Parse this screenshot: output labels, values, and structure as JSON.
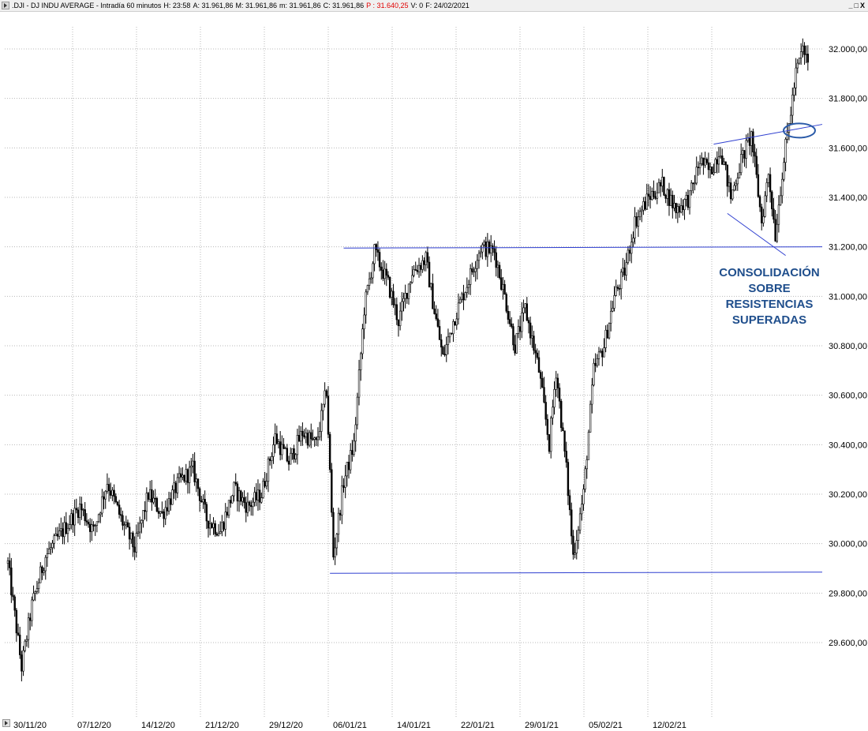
{
  "window": {
    "title_parts": [
      {
        "text": ".DJI - DJ INDU AVERAGE - Intradía 60 minutos",
        "color": "#000000"
      },
      {
        "text": "H: 23:58",
        "color": "#000000"
      },
      {
        "text": "A: 31.961,86",
        "color": "#000000"
      },
      {
        "text": "M: 31.961,86",
        "color": "#000000"
      },
      {
        "text": "m: 31.961,86",
        "color": "#000000"
      },
      {
        "text": "C: 31.961,86",
        "color": "#000000"
      },
      {
        "text": "P : 31.640,25",
        "color": "#e00000"
      },
      {
        "text": "V: 0",
        "color": "#000000"
      },
      {
        "text": "F: 24/02/2021",
        "color": "#000000"
      }
    ],
    "controls": {
      "minimize": "_",
      "restore": "□",
      "close": "X"
    }
  },
  "chart_data": {
    "type": "candlestick",
    "title": "",
    "xlabel": "",
    "ylabel": "",
    "ylim": [
      29400,
      32150
    ],
    "y_ticks": [
      29600,
      29800,
      30000,
      30200,
      30400,
      30600,
      30800,
      31000,
      31200,
      31400,
      31600,
      31800,
      32000
    ],
    "y_tick_labels": [
      "29.600,00",
      "29.800,00",
      "30.000,00",
      "30.200,00",
      "30.400,00",
      "30.600,00",
      "30.800,00",
      "31.000,00",
      "31.200,00",
      "31.400,00",
      "31.600,00",
      "31.800,00",
      "32.000,00"
    ],
    "x_tick_labels": [
      "30/11/20",
      "07/12/20",
      "14/12/20",
      "21/12/20",
      "29/12/20",
      "06/01/21",
      "14/01/21",
      "22/01/21",
      "29/01/21",
      "05/02/21",
      "12/02/21"
    ],
    "grid": true,
    "price_path": [
      {
        "bar": 0,
        "close": 29920
      },
      {
        "bar": 8,
        "close": 29500
      },
      {
        "bar": 14,
        "close": 29750
      },
      {
        "bar": 22,
        "close": 29950
      },
      {
        "bar": 32,
        "close": 30050
      },
      {
        "bar": 42,
        "close": 30150
      },
      {
        "bar": 50,
        "close": 30050
      },
      {
        "bar": 58,
        "close": 30250
      },
      {
        "bar": 66,
        "close": 30100
      },
      {
        "bar": 74,
        "close": 29980
      },
      {
        "bar": 82,
        "close": 30200
      },
      {
        "bar": 90,
        "close": 30120
      },
      {
        "bar": 100,
        "close": 30250
      },
      {
        "bar": 108,
        "close": 30300
      },
      {
        "bar": 116,
        "close": 30100
      },
      {
        "bar": 124,
        "close": 30050
      },
      {
        "bar": 132,
        "close": 30220
      },
      {
        "bar": 140,
        "close": 30150
      },
      {
        "bar": 148,
        "close": 30200
      },
      {
        "bar": 156,
        "close": 30430
      },
      {
        "bar": 164,
        "close": 30330
      },
      {
        "bar": 172,
        "close": 30450
      },
      {
        "bar": 180,
        "close": 30400
      },
      {
        "bar": 186,
        "close": 30620
      },
      {
        "bar": 190,
        "close": 29950
      },
      {
        "bar": 196,
        "close": 30250
      },
      {
        "bar": 202,
        "close": 30400
      },
      {
        "bar": 208,
        "close": 30950
      },
      {
        "bar": 214,
        "close": 31180
      },
      {
        "bar": 222,
        "close": 31050
      },
      {
        "bar": 228,
        "close": 30900
      },
      {
        "bar": 236,
        "close": 31100
      },
      {
        "bar": 244,
        "close": 31150
      },
      {
        "bar": 248,
        "close": 30980
      },
      {
        "bar": 254,
        "close": 30750
      },
      {
        "bar": 260,
        "close": 30900
      },
      {
        "bar": 268,
        "close": 31050
      },
      {
        "bar": 276,
        "close": 31200
      },
      {
        "bar": 284,
        "close": 31180
      },
      {
        "bar": 290,
        "close": 31000
      },
      {
        "bar": 296,
        "close": 30800
      },
      {
        "bar": 302,
        "close": 30950
      },
      {
        "bar": 310,
        "close": 30700
      },
      {
        "bar": 316,
        "close": 30400
      },
      {
        "bar": 320,
        "close": 30700
      },
      {
        "bar": 326,
        "close": 30300
      },
      {
        "bar": 330,
        "close": 29950
      },
      {
        "bar": 336,
        "close": 30200
      },
      {
        "bar": 342,
        "close": 30700
      },
      {
        "bar": 348,
        "close": 30800
      },
      {
        "bar": 354,
        "close": 31000
      },
      {
        "bar": 360,
        "close": 31100
      },
      {
        "bar": 366,
        "close": 31300
      },
      {
        "bar": 374,
        "close": 31400
      },
      {
        "bar": 382,
        "close": 31450
      },
      {
        "bar": 390,
        "close": 31350
      },
      {
        "bar": 398,
        "close": 31400
      },
      {
        "bar": 404,
        "close": 31550
      },
      {
        "bar": 410,
        "close": 31500
      },
      {
        "bar": 416,
        "close": 31600
      },
      {
        "bar": 422,
        "close": 31400
      },
      {
        "bar": 428,
        "close": 31550
      },
      {
        "bar": 434,
        "close": 31650
      },
      {
        "bar": 440,
        "close": 31300
      },
      {
        "bar": 444,
        "close": 31500
      },
      {
        "bar": 448,
        "close": 31250
      },
      {
        "bar": 452,
        "close": 31500
      },
      {
        "bar": 456,
        "close": 31700
      },
      {
        "bar": 460,
        "close": 31900
      },
      {
        "bar": 464,
        "close": 32000
      },
      {
        "bar": 466,
        "close": 31960
      }
    ],
    "total_bars": 468,
    "lines": [
      {
        "name": "support",
        "color": "#2f3fd0",
        "from": {
          "bar": 188,
          "value": 29880
        },
        "to": {
          "bar": 480,
          "value": 29885
        }
      },
      {
        "name": "resistance",
        "color": "#2f3fd0",
        "from": {
          "bar": 196,
          "value": 31195
        },
        "to": {
          "bar": 480,
          "value": 31200
        }
      },
      {
        "name": "upper-trend",
        "color": "#2f3fd0",
        "from": {
          "bar": 412,
          "value": 31615
        },
        "to": {
          "bar": 476,
          "value": 31695
        }
      },
      {
        "name": "lower-trend",
        "color": "#2f3fd0",
        "from": {
          "bar": 420,
          "value": 31335
        },
        "to": {
          "bar": 454,
          "value": 31165
        }
      }
    ],
    "ellipse": {
      "center": {
        "bar": 462,
        "value": 31670
      },
      "color": "#2a5aa8"
    },
    "annotation": [
      "CONSOLIDACIÓN",
      "SOBRE",
      "RESISTENCIAS",
      "SUPERADAS"
    ],
    "annotation_color": "#1f4e8c"
  }
}
